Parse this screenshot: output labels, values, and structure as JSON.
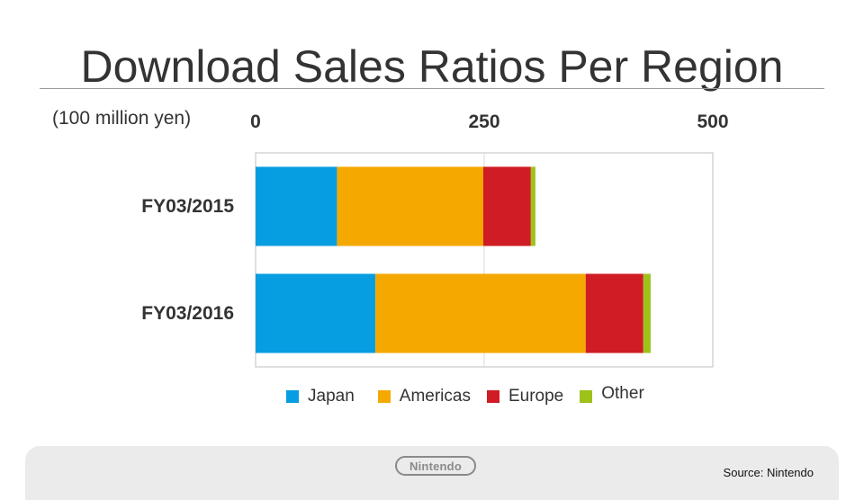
{
  "slide": {
    "title": "Download Sales Ratios Per Region",
    "source": "Source:  Nintendo",
    "logo_text": "Nintendo"
  },
  "chart_data": {
    "type": "bar",
    "orientation": "horizontal",
    "stacked": true,
    "unit_label": "(100 million yen)",
    "categories": [
      "FY03/2015",
      "FY03/2016"
    ],
    "xlim": [
      0,
      500
    ],
    "ticks": [
      "0",
      "250",
      "500"
    ],
    "grid": true,
    "legend_position": "bottom",
    "series": [
      {
        "name": "Japan",
        "color": "#069ee1",
        "values": [
          89,
          131
        ]
      },
      {
        "name": "Americas",
        "color": "#f5a800",
        "values": [
          160,
          230
        ]
      },
      {
        "name": "Europe",
        "color": "#d01c24",
        "values": [
          52,
          63
        ]
      },
      {
        "name": "Other",
        "color": "#9dc21a",
        "values": [
          5,
          8
        ]
      }
    ]
  }
}
